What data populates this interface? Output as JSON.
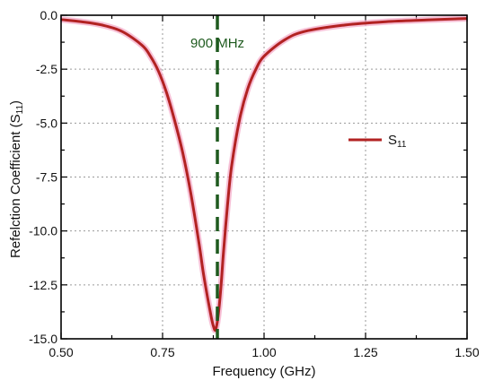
{
  "chart_data": {
    "type": "line",
    "title": "",
    "xlabel": "Frequency (GHz)",
    "ylabel_main": "Refelction Coefficient (S",
    "ylabel_sub": "11",
    "ylabel_end": ")",
    "xlim": [
      0.5,
      1.5
    ],
    "ylim": [
      -15.0,
      0.0
    ],
    "xticks": [
      0.5,
      0.75,
      1.0,
      1.25,
      1.5
    ],
    "xtick_labels": [
      "0.50",
      "0.75",
      "1.00",
      "1.25",
      "1.50"
    ],
    "yticks": [
      0.0,
      -2.5,
      -5.0,
      -7.5,
      -10.0,
      -12.5,
      -15.0
    ],
    "ytick_labels": [
      "0.0",
      "-2.5",
      "-5.0",
      "-7.5",
      "-10.0",
      "-12.5",
      "-15.0"
    ],
    "grid": true,
    "legend_position": "right",
    "series": [
      {
        "name_main": "S",
        "name_sub": "11",
        "color": "#b22222",
        "x": [
          0.5,
          0.55,
          0.6,
          0.65,
          0.7,
          0.72,
          0.74,
          0.76,
          0.78,
          0.8,
          0.82,
          0.84,
          0.85,
          0.86,
          0.87,
          0.875,
          0.88,
          0.885,
          0.89,
          0.895,
          0.9,
          0.91,
          0.92,
          0.94,
          0.96,
          0.98,
          1.0,
          1.05,
          1.1,
          1.2,
          1.3,
          1.4,
          1.5
        ],
        "y": [
          -0.2,
          -0.3,
          -0.45,
          -0.75,
          -1.4,
          -1.9,
          -2.6,
          -3.6,
          -4.9,
          -6.4,
          -8.3,
          -10.6,
          -11.9,
          -13.0,
          -14.0,
          -14.4,
          -14.6,
          -14.2,
          -13.4,
          -12.3,
          -11.0,
          -8.8,
          -7.0,
          -4.8,
          -3.4,
          -2.5,
          -1.9,
          -1.15,
          -0.75,
          -0.45,
          -0.3,
          -0.22,
          -0.15
        ]
      }
    ],
    "marker_line": {
      "x": 0.885,
      "label": "900 MHz",
      "color": "#1e5a1e"
    }
  }
}
